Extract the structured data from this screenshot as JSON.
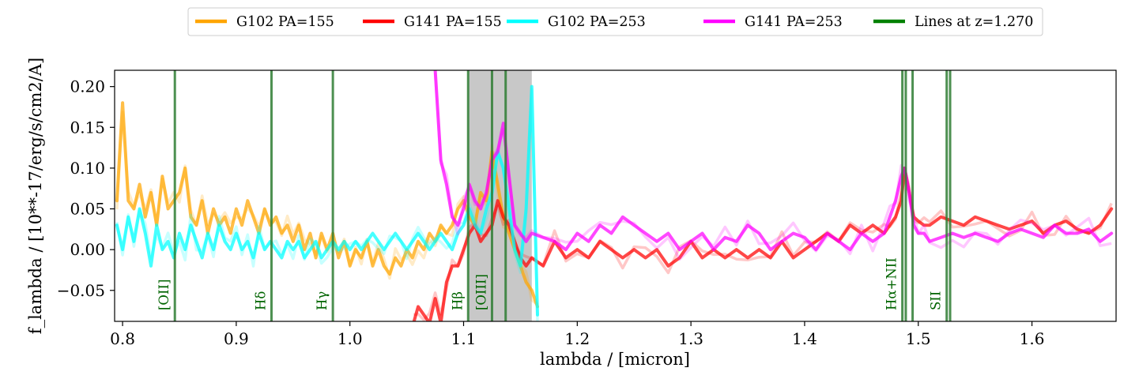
{
  "chart_data": {
    "type": "line",
    "title": "",
    "xlabel": "lambda / [micron]",
    "ylabel": "f_lambda / [10**-17/erg/s/cm2/A]",
    "xlim": [
      0.793,
      1.674
    ],
    "ylim": [
      -0.088,
      0.22
    ],
    "x_ticks": [
      0.8,
      0.9,
      1.0,
      1.1,
      1.2,
      1.3,
      1.4,
      1.5,
      1.6
    ],
    "x_tick_labels": [
      "0.8",
      "0.9",
      "1.0",
      "1.1",
      "1.2",
      "1.3",
      "1.4",
      "1.5",
      "1.6"
    ],
    "y_ticks": [
      -0.05,
      0.0,
      0.05,
      0.1,
      0.15,
      0.2
    ],
    "y_tick_labels": [
      "−0.05",
      "0.00",
      "0.05",
      "0.10",
      "0.15",
      "0.20"
    ],
    "legend_position": "top-center, above plot",
    "legend": [
      {
        "label": "G102 PA=155",
        "color": "#ffa500"
      },
      {
        "label": "G141 PA=155",
        "color": "#ff0000"
      },
      {
        "label": "G102 PA=253",
        "color": "#00ffff"
      },
      {
        "label": "G141 PA=253",
        "color": "#ff00ff"
      },
      {
        "label": "Lines at z=1.270",
        "color": "#008000"
      }
    ],
    "shaded_region": {
      "x": [
        1.104,
        1.16
      ],
      "color": "#c8c8c8"
    },
    "emission_lines": [
      {
        "label": "[OII]",
        "x": [
          0.846
        ]
      },
      {
        "label": "Hδ",
        "x": [
          0.931
        ]
      },
      {
        "label": "Hγ",
        "x": [
          0.985
        ]
      },
      {
        "label": "Hβ",
        "x": [
          1.104
        ]
      },
      {
        "label": "[OIII]",
        "x": [
          1.125,
          1.137
        ]
      },
      {
        "label": "Hα+NII",
        "x": [
          1.486,
          1.489,
          1.495
        ]
      },
      {
        "label": "SII",
        "x": [
          1.525,
          1.528
        ]
      }
    ],
    "series": [
      {
        "name": "G102 PA=155",
        "color": "#ffa500",
        "x": [
          0.795,
          0.8,
          0.805,
          0.81,
          0.815,
          0.82,
          0.825,
          0.83,
          0.835,
          0.84,
          0.845,
          0.85,
          0.855,
          0.86,
          0.865,
          0.87,
          0.875,
          0.88,
          0.885,
          0.89,
          0.895,
          0.9,
          0.905,
          0.91,
          0.915,
          0.92,
          0.925,
          0.93,
          0.935,
          0.94,
          0.945,
          0.95,
          0.955,
          0.96,
          0.965,
          0.97,
          0.975,
          0.98,
          0.985,
          0.99,
          0.995,
          1.0,
          1.005,
          1.01,
          1.015,
          1.02,
          1.025,
          1.03,
          1.035,
          1.04,
          1.045,
          1.05,
          1.055,
          1.06,
          1.065,
          1.07,
          1.075,
          1.08,
          1.085,
          1.09,
          1.095,
          1.1,
          1.105,
          1.11,
          1.115,
          1.12,
          1.125,
          1.13,
          1.135,
          1.14,
          1.145,
          1.15,
          1.155,
          1.16,
          1.165
        ],
        "y": [
          0.06,
          0.18,
          0.06,
          0.05,
          0.08,
          0.04,
          0.07,
          0.03,
          0.09,
          0.05,
          0.06,
          0.07,
          0.1,
          0.04,
          0.03,
          0.06,
          0.02,
          0.05,
          0.03,
          0.04,
          0.02,
          0.05,
          0.03,
          0.06,
          0.04,
          0.02,
          0.05,
          0.03,
          0.04,
          0.02,
          0.03,
          0.01,
          0.03,
          0.0,
          0.02,
          -0.01,
          0.02,
          0.0,
          0.02,
          -0.01,
          0.01,
          -0.02,
          0.0,
          -0.01,
          0.01,
          -0.02,
          0.0,
          -0.02,
          -0.03,
          -0.01,
          -0.02,
          0.0,
          -0.01,
          0.01,
          0.0,
          0.02,
          0.01,
          0.03,
          0.02,
          0.03,
          0.05,
          0.06,
          0.04,
          0.03,
          0.07,
          0.06,
          0.12,
          0.08,
          0.04,
          0.02,
          0.0,
          -0.02,
          -0.04,
          -0.05,
          -0.07
        ]
      },
      {
        "name": "G141 PA=155",
        "color": "#ff0000",
        "x": [
          1.056,
          1.06,
          1.065,
          1.07,
          1.075,
          1.08,
          1.085,
          1.09,
          1.095,
          1.1,
          1.105,
          1.11,
          1.115,
          1.12,
          1.125,
          1.13,
          1.135,
          1.14,
          1.145,
          1.15,
          1.155,
          1.16,
          1.17,
          1.18,
          1.19,
          1.2,
          1.21,
          1.22,
          1.23,
          1.24,
          1.25,
          1.26,
          1.27,
          1.28,
          1.29,
          1.3,
          1.31,
          1.32,
          1.33,
          1.34,
          1.35,
          1.36,
          1.37,
          1.38,
          1.39,
          1.4,
          1.41,
          1.42,
          1.43,
          1.44,
          1.45,
          1.46,
          1.47,
          1.475,
          1.48,
          1.485,
          1.488,
          1.492,
          1.496,
          1.5,
          1.505,
          1.51,
          1.52,
          1.53,
          1.54,
          1.55,
          1.56,
          1.57,
          1.58,
          1.59,
          1.6,
          1.61,
          1.62,
          1.63,
          1.64,
          1.65,
          1.66,
          1.67
        ],
        "y": [
          -0.09,
          -0.07,
          -0.08,
          -0.09,
          -0.06,
          -0.09,
          -0.04,
          -0.02,
          -0.02,
          0.0,
          0.02,
          0.03,
          0.01,
          0.02,
          0.03,
          0.06,
          0.04,
          0.03,
          0.01,
          -0.01,
          -0.02,
          -0.01,
          -0.02,
          0.01,
          -0.01,
          0.0,
          -0.01,
          0.01,
          0.0,
          -0.01,
          0.0,
          -0.01,
          0.0,
          -0.02,
          -0.01,
          0.01,
          -0.01,
          0.0,
          -0.01,
          0.0,
          -0.01,
          0.0,
          -0.01,
          0.01,
          -0.01,
          0.0,
          0.01,
          0.02,
          0.01,
          0.03,
          0.02,
          0.03,
          0.02,
          0.03,
          0.04,
          0.06,
          0.1,
          0.07,
          0.04,
          0.035,
          0.03,
          0.03,
          0.04,
          0.035,
          0.03,
          0.04,
          0.035,
          0.03,
          0.025,
          0.03,
          0.035,
          0.02,
          0.03,
          0.035,
          0.025,
          0.02,
          0.03,
          0.05
        ]
      },
      {
        "name": "G102 PA=253",
        "color": "#00ffff",
        "x": [
          0.795,
          0.8,
          0.805,
          0.81,
          0.815,
          0.82,
          0.825,
          0.83,
          0.835,
          0.84,
          0.845,
          0.85,
          0.855,
          0.86,
          0.865,
          0.87,
          0.875,
          0.88,
          0.885,
          0.89,
          0.895,
          0.9,
          0.905,
          0.91,
          0.915,
          0.92,
          0.925,
          0.93,
          0.935,
          0.94,
          0.945,
          0.95,
          0.955,
          0.96,
          0.965,
          0.97,
          0.975,
          0.98,
          0.985,
          0.99,
          0.995,
          1.0,
          1.005,
          1.01,
          1.015,
          1.02,
          1.025,
          1.03,
          1.035,
          1.04,
          1.045,
          1.05,
          1.055,
          1.06,
          1.065,
          1.07,
          1.075,
          1.08,
          1.085,
          1.09,
          1.095,
          1.1,
          1.105,
          1.11,
          1.115,
          1.12,
          1.125,
          1.13,
          1.135,
          1.14,
          1.145,
          1.15,
          1.155,
          1.16,
          1.165
        ],
        "y": [
          0.03,
          0.0,
          0.04,
          0.01,
          0.05,
          0.02,
          -0.02,
          0.03,
          0.0,
          0.01,
          -0.01,
          0.02,
          0.0,
          0.03,
          0.01,
          -0.01,
          0.02,
          0.0,
          0.03,
          0.01,
          0.0,
          0.02,
          0.0,
          0.01,
          -0.01,
          0.02,
          0.0,
          0.01,
          0.0,
          -0.01,
          0.01,
          0.0,
          0.01,
          -0.01,
          0.0,
          0.01,
          -0.01,
          0.0,
          0.01,
          0.0,
          0.01,
          0.0,
          0.01,
          0.0,
          0.01,
          0.02,
          0.01,
          0.0,
          0.01,
          0.02,
          0.01,
          0.0,
          0.01,
          0.02,
          0.01,
          0.0,
          0.01,
          0.02,
          0.01,
          0.0,
          0.02,
          0.03,
          0.05,
          0.03,
          0.02,
          0.05,
          0.07,
          0.12,
          0.1,
          0.05,
          0.0,
          -0.02,
          0.05,
          0.2,
          -0.08
        ]
      },
      {
        "name": "G141 PA=253",
        "color": "#ff00ff",
        "x": [
          1.075,
          1.08,
          1.085,
          1.09,
          1.095,
          1.1,
          1.105,
          1.11,
          1.115,
          1.12,
          1.125,
          1.13,
          1.135,
          1.14,
          1.145,
          1.15,
          1.155,
          1.16,
          1.17,
          1.18,
          1.19,
          1.2,
          1.21,
          1.22,
          1.23,
          1.24,
          1.25,
          1.26,
          1.27,
          1.28,
          1.29,
          1.3,
          1.31,
          1.32,
          1.33,
          1.34,
          1.35,
          1.36,
          1.37,
          1.38,
          1.39,
          1.4,
          1.41,
          1.42,
          1.43,
          1.44,
          1.45,
          1.46,
          1.47,
          1.475,
          1.48,
          1.485,
          1.488,
          1.492,
          1.496,
          1.5,
          1.505,
          1.51,
          1.52,
          1.53,
          1.54,
          1.55,
          1.56,
          1.57,
          1.58,
          1.59,
          1.6,
          1.61,
          1.62,
          1.63,
          1.64,
          1.65,
          1.66,
          1.67
        ],
        "y": [
          0.22,
          0.11,
          0.08,
          0.04,
          0.03,
          0.05,
          0.08,
          0.06,
          0.05,
          0.07,
          0.11,
          0.12,
          0.155,
          0.09,
          0.03,
          0.02,
          0.01,
          0.02,
          0.015,
          0.01,
          0.0,
          0.02,
          0.01,
          0.03,
          0.02,
          0.04,
          0.03,
          0.02,
          0.01,
          0.02,
          0.0,
          0.01,
          0.02,
          0.0,
          0.015,
          0.01,
          0.03,
          0.02,
          0.0,
          0.01,
          0.02,
          0.015,
          0.0,
          0.02,
          0.01,
          0.0,
          0.02,
          0.01,
          0.02,
          0.04,
          0.06,
          0.09,
          0.1,
          0.07,
          0.03,
          0.02,
          0.02,
          0.01,
          0.015,
          0.02,
          0.015,
          0.02,
          0.015,
          0.01,
          0.02,
          0.025,
          0.02,
          0.015,
          0.03,
          0.02,
          0.02,
          0.025,
          0.01,
          0.02
        ]
      }
    ]
  }
}
